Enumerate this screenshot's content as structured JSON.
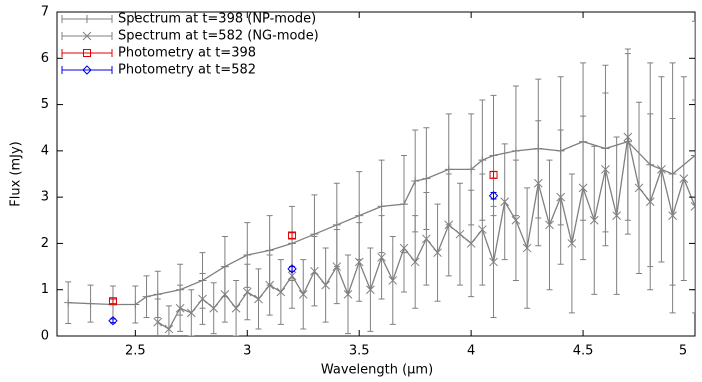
{
  "chart_data": {
    "type": "errorbar",
    "xlabel": "Wavelength (μm)",
    "ylabel": "Flux (mJy)",
    "xlim": [
      2.15,
      5.0
    ],
    "xticks": [
      2.5,
      3.0,
      3.5,
      4.0,
      4.5,
      5.0
    ],
    "ylim": [
      0,
      7
    ],
    "yticks": [
      0,
      1,
      2,
      3,
      4,
      5,
      6,
      7
    ],
    "legend": "top-left",
    "series": [
      {
        "name": "Spectrum at t=398 (NP-mode)",
        "color": "#808080",
        "marker": "plus",
        "line": true,
        "x": [
          2.2,
          2.3,
          2.4,
          2.5,
          2.55,
          2.6,
          2.7,
          2.8,
          2.9,
          3.0,
          3.1,
          3.2,
          3.3,
          3.4,
          3.5,
          3.6,
          3.7,
          3.75,
          3.8,
          3.9,
          4.0,
          4.05,
          4.1,
          4.2,
          4.3,
          4.4,
          4.5,
          4.6,
          4.7,
          4.8,
          4.9,
          5.0
        ],
        "values": [
          0.72,
          0.7,
          0.68,
          0.68,
          0.85,
          0.9,
          1.0,
          1.2,
          1.5,
          1.75,
          1.85,
          2.0,
          2.2,
          2.4,
          2.6,
          2.8,
          2.85,
          3.35,
          3.4,
          3.6,
          3.6,
          3.8,
          3.9,
          4.0,
          4.05,
          4.0,
          4.2,
          4.05,
          4.2,
          3.7,
          3.5,
          3.9
        ],
        "errors": [
          0.45,
          0.4,
          0.4,
          0.4,
          0.45,
          0.5,
          0.55,
          0.6,
          0.65,
          0.7,
          0.75,
          0.8,
          0.85,
          0.9,
          0.95,
          1.0,
          1.05,
          1.1,
          1.1,
          1.2,
          1.2,
          1.3,
          1.3,
          1.4,
          1.5,
          1.6,
          1.7,
          1.8,
          2.0,
          2.2,
          2.4,
          2.9
        ]
      },
      {
        "name": "Spectrum at t=582 (NG-mode)",
        "color": "#808080",
        "marker": "cross",
        "line": true,
        "x": [
          2.6,
          2.65,
          2.7,
          2.75,
          2.8,
          2.85,
          2.9,
          2.95,
          3.0,
          3.05,
          3.1,
          3.15,
          3.2,
          3.25,
          3.3,
          3.35,
          3.4,
          3.45,
          3.5,
          3.55,
          3.6,
          3.65,
          3.7,
          3.75,
          3.8,
          3.85,
          3.9,
          3.95,
          4.0,
          4.05,
          4.1,
          4.15,
          4.2,
          4.25,
          4.3,
          4.35,
          4.4,
          4.45,
          4.5,
          4.55,
          4.6,
          4.65,
          4.7,
          4.75,
          4.8,
          4.85,
          4.9,
          4.95,
          5.0
        ],
        "values": [
          0.3,
          0.15,
          0.6,
          0.5,
          0.8,
          0.6,
          0.9,
          0.6,
          0.95,
          0.8,
          1.1,
          0.95,
          1.3,
          0.9,
          1.4,
          1.1,
          1.5,
          0.9,
          1.6,
          1.0,
          1.7,
          1.2,
          1.9,
          1.6,
          2.1,
          1.8,
          2.4,
          2.2,
          2.0,
          2.3,
          1.6,
          2.9,
          2.5,
          1.9,
          3.3,
          2.4,
          3.0,
          2.0,
          3.2,
          2.5,
          3.6,
          2.6,
          4.3,
          3.2,
          2.9,
          3.6,
          2.6,
          3.4,
          2.8
        ],
        "errors": [
          0.5,
          0.5,
          0.5,
          0.5,
          0.55,
          0.55,
          0.6,
          0.6,
          0.6,
          0.65,
          0.65,
          0.7,
          0.7,
          0.75,
          0.75,
          0.8,
          0.8,
          0.85,
          0.85,
          0.9,
          0.9,
          0.95,
          0.95,
          1.0,
          1.0,
          1.05,
          1.1,
          1.1,
          1.15,
          1.2,
          1.2,
          1.25,
          1.3,
          1.3,
          1.35,
          1.4,
          1.45,
          1.5,
          1.55,
          1.6,
          1.65,
          1.7,
          1.8,
          1.85,
          1.9,
          2.0,
          2.1,
          2.2,
          2.3
        ]
      },
      {
        "name": "Photometry at t=398",
        "color": "#e00000",
        "marker": "square",
        "line": false,
        "x": [
          2.4,
          3.2,
          4.1
        ],
        "values": [
          0.75,
          2.17,
          3.48
        ],
        "errors": [
          0.05,
          0.06,
          0.07
        ]
      },
      {
        "name": "Photometry at t=582",
        "color": "#0000e0",
        "marker": "diamond",
        "line": false,
        "x": [
          2.4,
          3.2,
          4.1
        ],
        "values": [
          0.33,
          1.45,
          3.03
        ],
        "errors": [
          0.04,
          0.05,
          0.07
        ]
      }
    ]
  }
}
